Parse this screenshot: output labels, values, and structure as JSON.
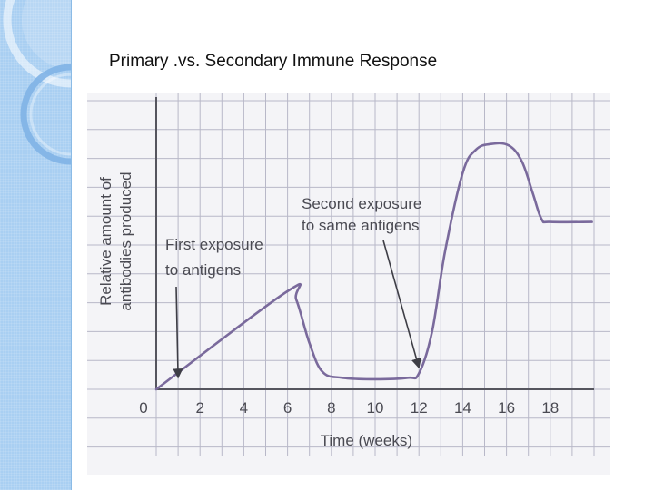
{
  "slide": {
    "title": "Primary .vs. Secondary Immune Response"
  },
  "theme": {
    "band_color": "#a9cff2",
    "curve_color": "#7a6a9c",
    "grid_color": "#b8b8c8",
    "text_color": "#4a4a52"
  },
  "chart_data": {
    "type": "line",
    "title": "",
    "xlabel": "Time (weeks)",
    "ylabel_lines": [
      "Relative amount of",
      "antibodies produced"
    ],
    "xlim": [
      0,
      20
    ],
    "ylim": [
      0,
      10
    ],
    "x_ticks": [
      0,
      2,
      4,
      6,
      8,
      10,
      12,
      14,
      16,
      18
    ],
    "grid": true,
    "series": [
      {
        "values": [
          [
            0,
            0
          ],
          [
            6,
            3.4
          ],
          [
            6.4,
            3.1
          ],
          [
            7,
            1.6
          ],
          [
            7.6,
            0.6
          ],
          [
            8.5,
            0.4
          ],
          [
            10,
            0.35
          ],
          [
            11.5,
            0.4
          ],
          [
            12,
            0.55
          ],
          [
            12.6,
            2.0
          ],
          [
            13.2,
            4.8
          ],
          [
            14,
            7.5
          ],
          [
            14.6,
            8.3
          ],
          [
            15.3,
            8.5
          ],
          [
            16.1,
            8.45
          ],
          [
            16.7,
            7.9
          ],
          [
            17.2,
            6.8
          ],
          [
            17.6,
            5.9
          ],
          [
            18,
            5.8
          ],
          [
            19.9,
            5.8
          ]
        ]
      }
    ],
    "annotations": [
      {
        "lines": [
          "First exposure",
          "to antigens"
        ],
        "arrow_to": [
          1,
          0.4
        ]
      },
      {
        "lines": [
          "Second exposure",
          "to same antigens"
        ],
        "arrow_to": [
          12,
          0.75
        ]
      }
    ]
  }
}
